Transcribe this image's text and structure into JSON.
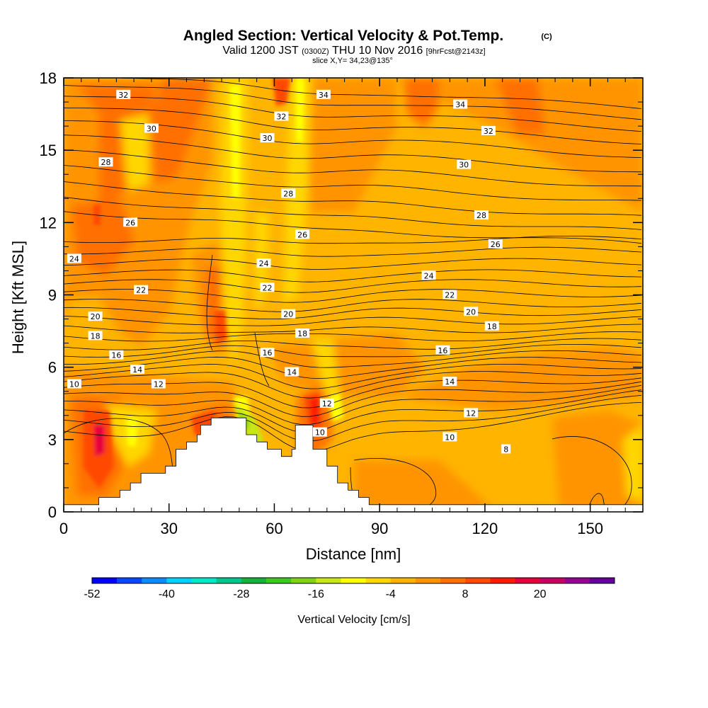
{
  "title": {
    "main": "Angled Section: Vertical Velocity & Pot.Temp.",
    "main_tag": "(C)",
    "valid_prefix": "Valid 1200 JST",
    "valid_utc": "(0300Z)",
    "valid_date": "THU 10 Nov 2016",
    "forecast": "[9hrFcst@2143z]",
    "slice": "slice X,Y= 34,23@135°"
  },
  "chart_data": {
    "type": "heatmap",
    "xlabel": "Distance [nm]",
    "ylabel": "Height [Kft MSL]",
    "xlim": [
      0,
      165
    ],
    "ylim": [
      0,
      18
    ],
    "xticks": [
      "0",
      "30",
      "60",
      "90",
      "120",
      "150"
    ],
    "yticks": [
      "0",
      "3",
      "6",
      "9",
      "12",
      "15",
      "18"
    ],
    "terrain_kft": [
      [
        0,
        0.3
      ],
      [
        10,
        0.3
      ],
      [
        10,
        0.6
      ],
      [
        16,
        0.6
      ],
      [
        16,
        0.9
      ],
      [
        19,
        0.9
      ],
      [
        19,
        1.2
      ],
      [
        22,
        1.2
      ],
      [
        22,
        1.6
      ],
      [
        29,
        1.6
      ],
      [
        29,
        1.9
      ],
      [
        32,
        1.9
      ],
      [
        32,
        2.6
      ],
      [
        35,
        2.6
      ],
      [
        35,
        2.9
      ],
      [
        38,
        2.9
      ],
      [
        38,
        3.2
      ],
      [
        39,
        3.2
      ],
      [
        39,
        3.6
      ],
      [
        42,
        3.6
      ],
      [
        42,
        3.9
      ],
      [
        52,
        3.9
      ],
      [
        52,
        3.2
      ],
      [
        55,
        3.2
      ],
      [
        55,
        2.9
      ],
      [
        58,
        2.9
      ],
      [
        58,
        2.6
      ],
      [
        62,
        2.6
      ],
      [
        62,
        2.3
      ],
      [
        65,
        2.3
      ],
      [
        65,
        2.6
      ],
      [
        66,
        2.6
      ],
      [
        66,
        3.6
      ],
      [
        71,
        3.6
      ],
      [
        71,
        2.6
      ],
      [
        75,
        2.6
      ],
      [
        75,
        1.9
      ],
      [
        78,
        1.9
      ],
      [
        78,
        1.2
      ],
      [
        81,
        1.2
      ],
      [
        81,
        0.9
      ],
      [
        84,
        0.9
      ],
      [
        84,
        0.6
      ],
      [
        87,
        0.6
      ],
      [
        87,
        0.3
      ],
      [
        165,
        0.3
      ]
    ],
    "colorbar": {
      "label": "Vertical Velocity [cm/s]",
      "tick_labels": [
        "-52",
        "-40",
        "-28",
        "-16",
        "-4",
        "8",
        "20"
      ],
      "colors": [
        "#0000ff",
        "#0a46ff",
        "#0a8cff",
        "#00d2ff",
        "#00e8c4",
        "#00c88c",
        "#14b43c",
        "#3cc81e",
        "#82d214",
        "#c8e614",
        "#ffff00",
        "#ffd700",
        "#ffb400",
        "#ff9400",
        "#ff7000",
        "#ff4a00",
        "#ff1a00",
        "#e6003c",
        "#c80064",
        "#960096",
        "#64009b"
      ]
    },
    "theta_contour_labels": [
      {
        "text": "32",
        "x": 17,
        "y": 17.3
      },
      {
        "text": "34",
        "x": 74,
        "y": 17.3
      },
      {
        "text": "34",
        "x": 113,
        "y": 16.9
      },
      {
        "text": "32",
        "x": 62,
        "y": 16.4
      },
      {
        "text": "32",
        "x": 121,
        "y": 15.8
      },
      {
        "text": "30",
        "x": 25,
        "y": 15.9
      },
      {
        "text": "30",
        "x": 58,
        "y": 15.5
      },
      {
        "text": "30",
        "x": 114,
        "y": 14.4
      },
      {
        "text": "28",
        "x": 12,
        "y": 14.5
      },
      {
        "text": "28",
        "x": 64,
        "y": 13.2
      },
      {
        "text": "28",
        "x": 119,
        "y": 12.3
      },
      {
        "text": "26",
        "x": 19,
        "y": 12.0
      },
      {
        "text": "26",
        "x": 68,
        "y": 11.5
      },
      {
        "text": "26",
        "x": 123,
        "y": 11.1
      },
      {
        "text": "24",
        "x": 3,
        "y": 10.5
      },
      {
        "text": "24",
        "x": 57,
        "y": 10.3
      },
      {
        "text": "24",
        "x": 104,
        "y": 9.8
      },
      {
        "text": "22",
        "x": 22,
        "y": 9.2
      },
      {
        "text": "22",
        "x": 58,
        "y": 9.3
      },
      {
        "text": "22",
        "x": 110,
        "y": 9.0
      },
      {
        "text": "20",
        "x": 9,
        "y": 8.1
      },
      {
        "text": "20",
        "x": 64,
        "y": 8.2
      },
      {
        "text": "20",
        "x": 116,
        "y": 8.3
      },
      {
        "text": "18",
        "x": 9,
        "y": 7.3
      },
      {
        "text": "18",
        "x": 68,
        "y": 7.4
      },
      {
        "text": "18",
        "x": 122,
        "y": 7.7
      },
      {
        "text": "16",
        "x": 15,
        "y": 6.5
      },
      {
        "text": "16",
        "x": 58,
        "y": 6.6
      },
      {
        "text": "16",
        "x": 108,
        "y": 6.7
      },
      {
        "text": "14",
        "x": 21,
        "y": 5.9
      },
      {
        "text": "14",
        "x": 65,
        "y": 5.8
      },
      {
        "text": "14",
        "x": 110,
        "y": 5.4
      },
      {
        "text": "12",
        "x": 27,
        "y": 5.3
      },
      {
        "text": "12",
        "x": 75,
        "y": 4.5
      },
      {
        "text": "12",
        "x": 116,
        "y": 4.1
      },
      {
        "text": "10",
        "x": 3,
        "y": 5.3
      },
      {
        "text": "10",
        "x": 73,
        "y": 3.3
      },
      {
        "text": "10",
        "x": 110,
        "y": 3.1
      },
      {
        "text": "8",
        "x": 126,
        "y": 2.6
      }
    ]
  }
}
